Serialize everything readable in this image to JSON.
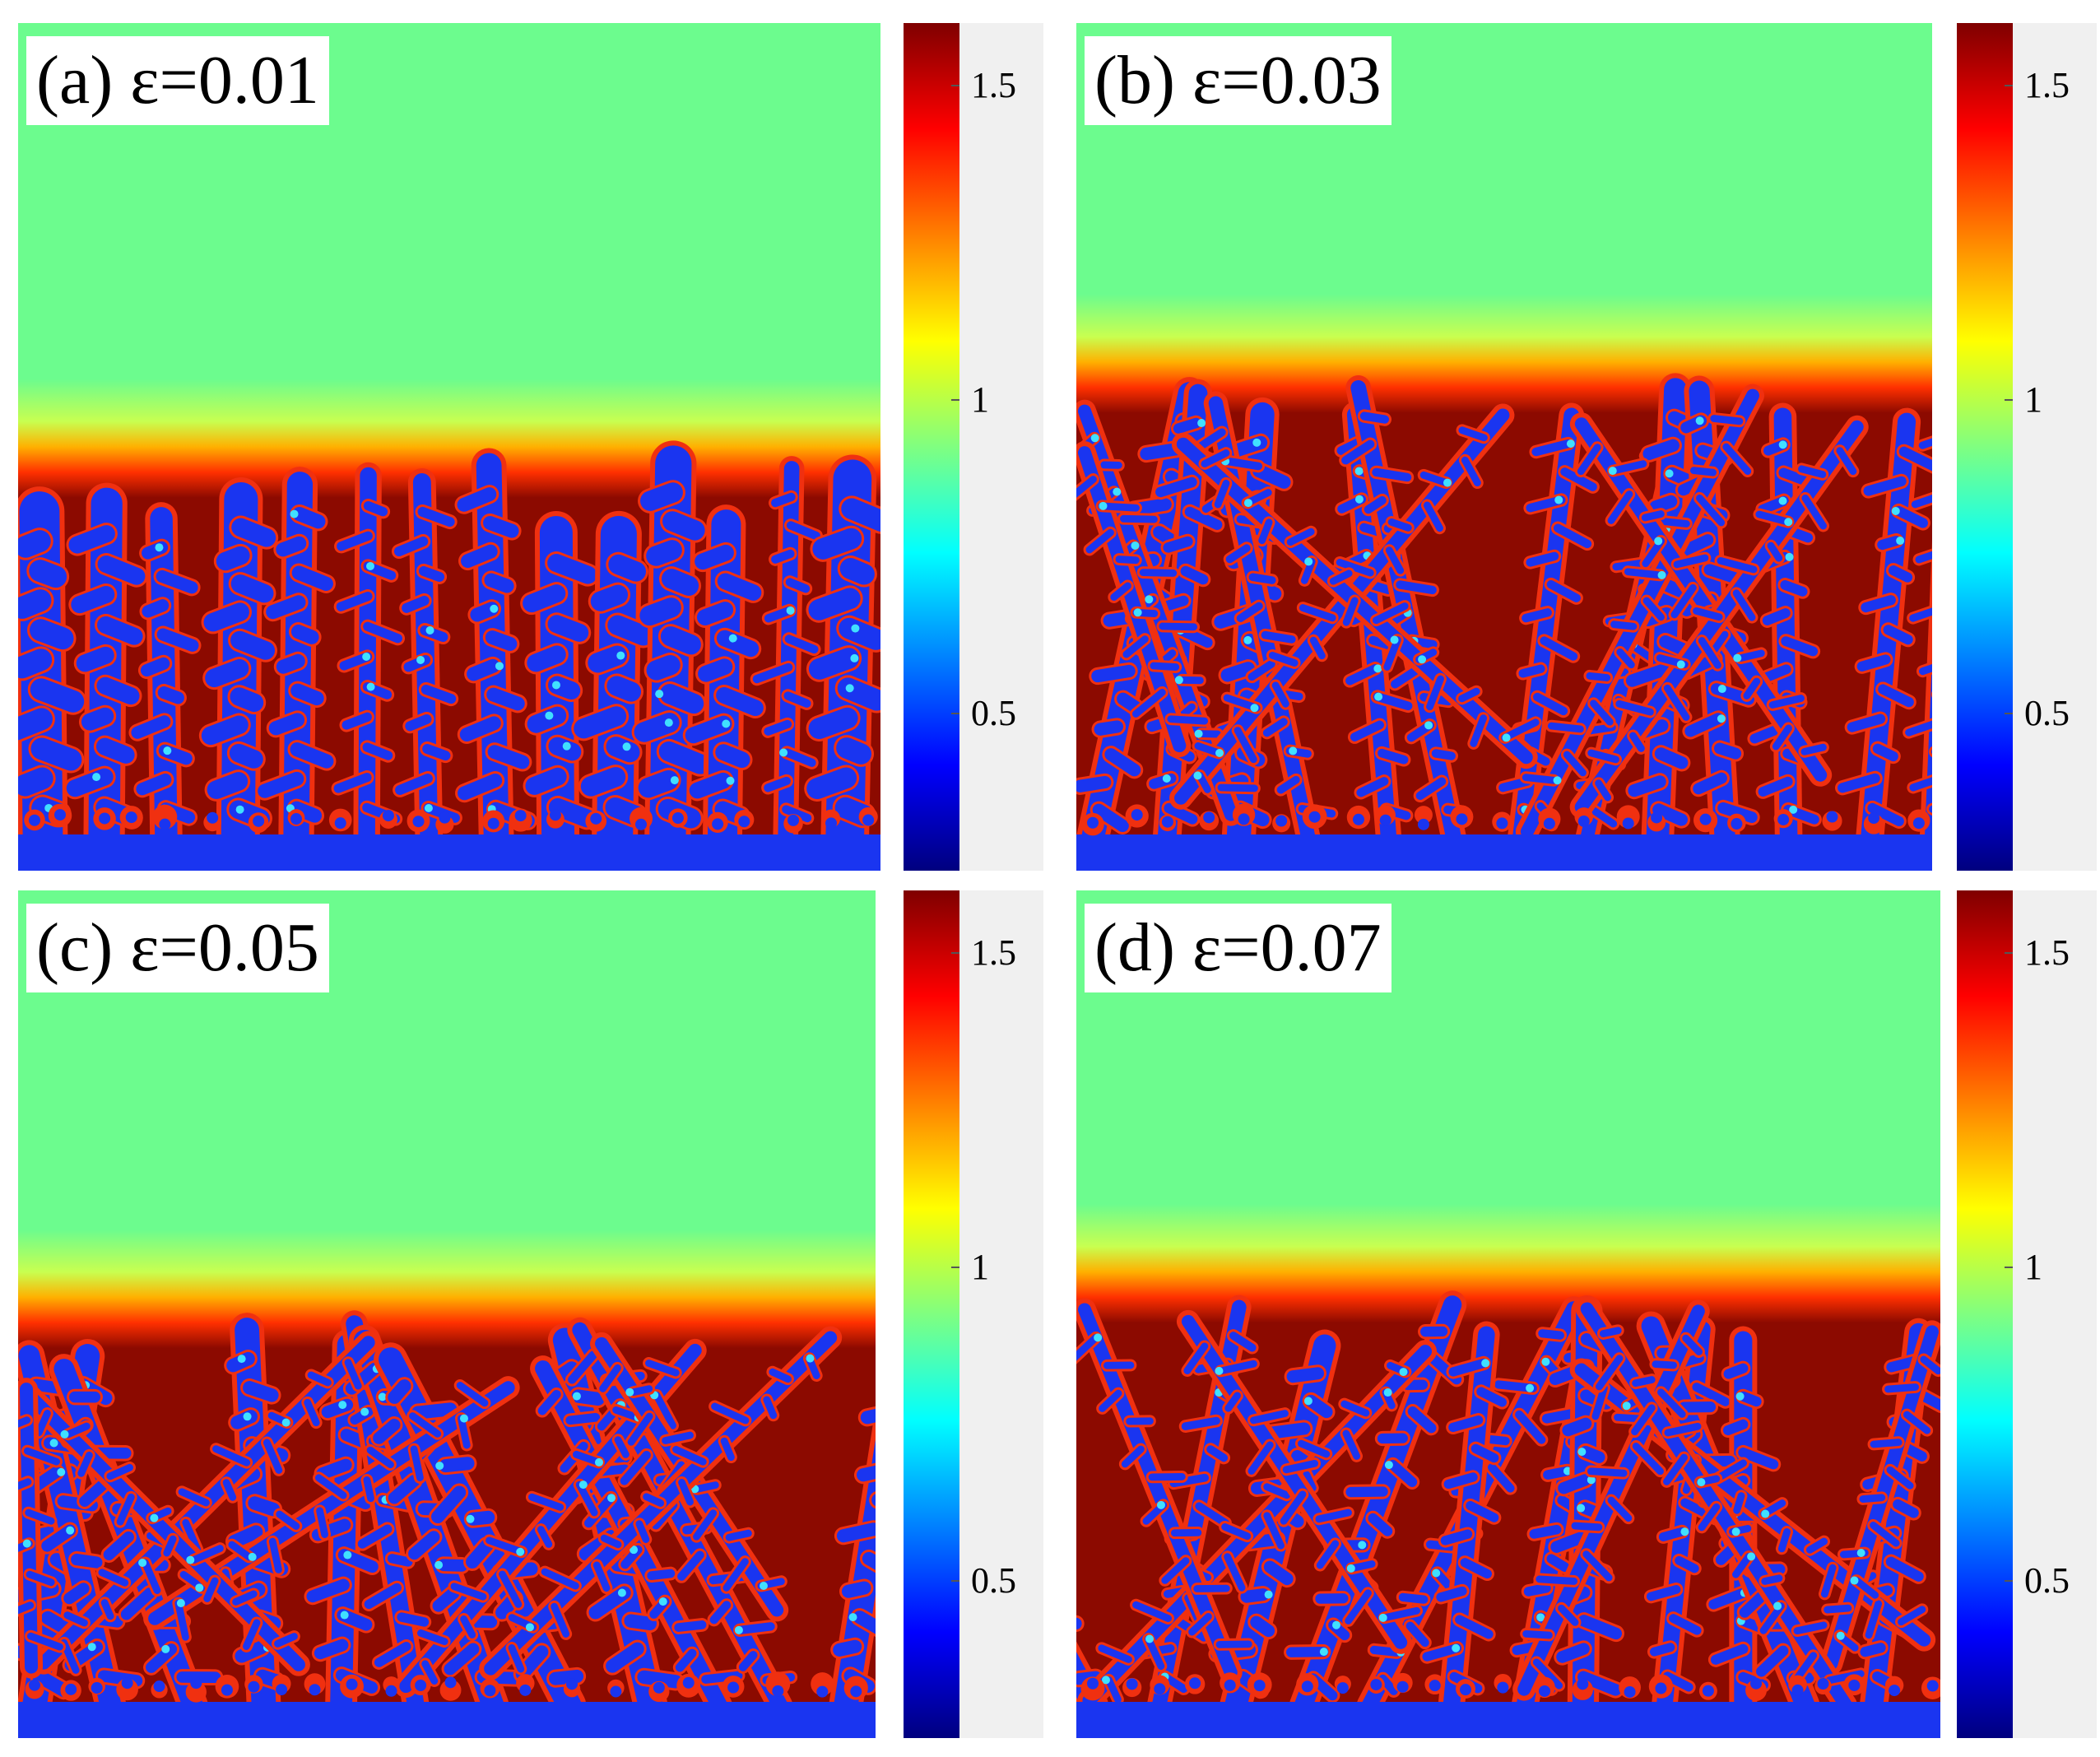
{
  "figure": {
    "colormap": [
      "#00007f",
      "#0000ff",
      "#0080ff",
      "#00ffff",
      "#80ff80",
      "#ffff00",
      "#ff8000",
      "#ff0000",
      "#7f0000"
    ],
    "colors": {
      "liquid": "#6cfc8e",
      "solid_core": "#1a35f0",
      "solute_rich": "#8c0a00",
      "interface": "#f03010",
      "cbar_background": "#f0f0f0"
    },
    "colorbar": {
      "min": 0.25,
      "max": 1.6,
      "ticks": [
        {
          "value": 1.5,
          "label": "1.5"
        },
        {
          "value": 1,
          "label": "1"
        },
        {
          "value": 0.5,
          "label": "0.5"
        }
      ]
    },
    "panels": [
      {
        "id": "a",
        "label": "(a) ε=0.01",
        "epsilon": 0.01,
        "front_level": 0.5
      },
      {
        "id": "b",
        "label": "(b) ε=0.03",
        "epsilon": 0.03,
        "front_level": 0.41
      },
      {
        "id": "c",
        "label": "(c) ε=0.05",
        "epsilon": 0.05,
        "front_level": 0.49
      },
      {
        "id": "d",
        "label": "(d) ε=0.07",
        "epsilon": 0.07,
        "front_level": 0.46
      }
    ]
  }
}
